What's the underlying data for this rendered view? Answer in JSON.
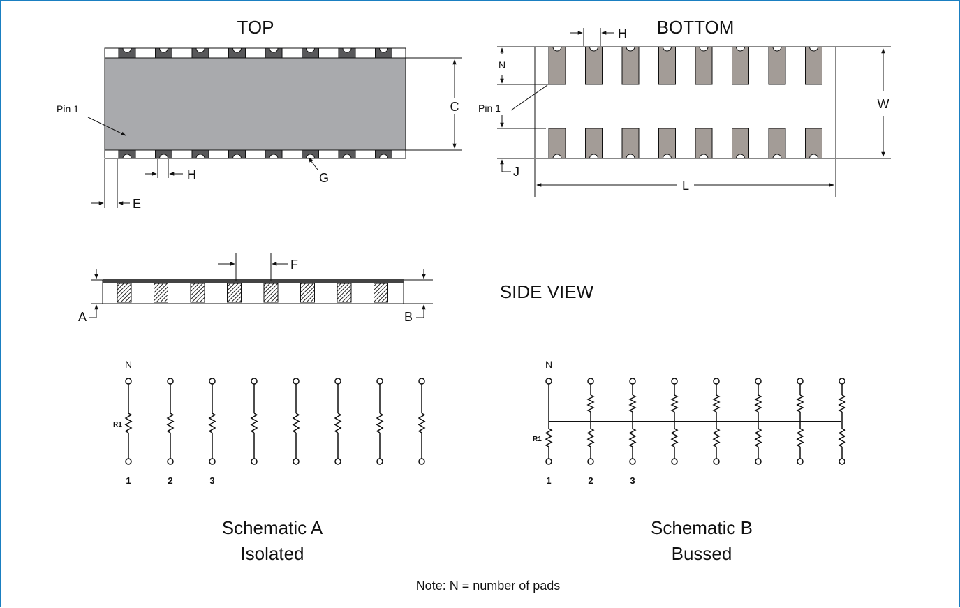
{
  "views": {
    "top": {
      "title": "TOP",
      "pin1": "Pin 1",
      "dim_c": "C",
      "dim_e": "E",
      "dim_h": "H",
      "dim_g": "G"
    },
    "bottom": {
      "title": "BOTTOM",
      "pin1": "Pin 1",
      "dim_n": "N",
      "dim_h": "H",
      "dim_w": "W",
      "dim_j": "J",
      "dim_l": "L"
    },
    "side": {
      "title": "SIDE VIEW",
      "dim_a": "A",
      "dim_b": "B",
      "dim_f": "F"
    }
  },
  "schematic_a": {
    "label_n": "N",
    "resistor_label": "R1",
    "pin_numbers": [
      "1",
      "2",
      "3"
    ],
    "title": "Schematic A",
    "subtitle": "Isolated"
  },
  "schematic_b": {
    "label_n": "N",
    "resistor_label": "R1",
    "pin_numbers": [
      "1",
      "2",
      "3"
    ],
    "title": "Schematic B",
    "subtitle": "Bussed"
  },
  "note": "Note: N = number of pads",
  "colors": {
    "frame": "#1a7fc1",
    "body": "#a9aaad",
    "pad_bottom": "#a39c97",
    "pad_top": "#58585a"
  }
}
